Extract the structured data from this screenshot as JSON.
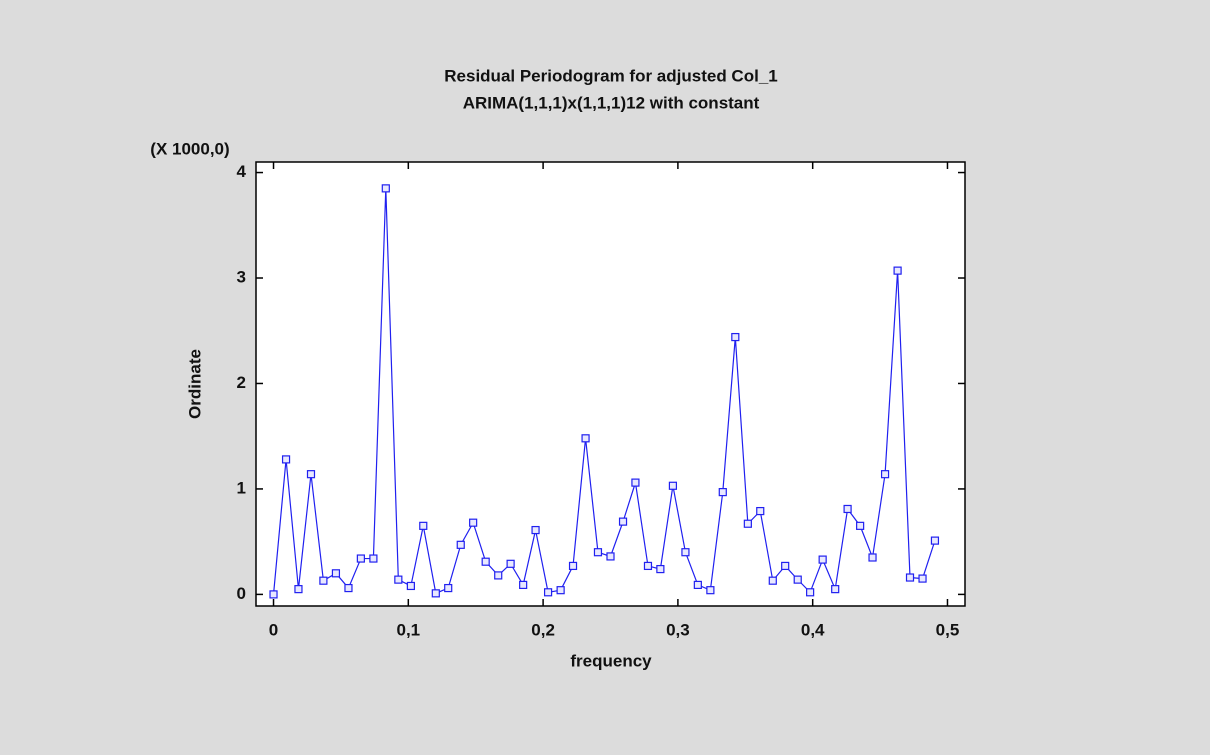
{
  "chart_data": {
    "type": "line",
    "title": "Residual Periodogram for adjusted Col_1",
    "subtitle": "ARIMA(1,1,1)x(1,1,1)12 with constant",
    "x_label": "frequency",
    "y_label": "Ordinate",
    "y_multiplier": "(X 1000,0)",
    "x": [
      0,
      0.0093,
      0.0185,
      0.0278,
      0.037,
      0.0463,
      0.0556,
      0.0648,
      0.0741,
      0.0833,
      0.0926,
      0.1019,
      0.1111,
      0.1204,
      0.1296,
      0.1389,
      0.1481,
      0.1574,
      0.1667,
      0.1759,
      0.1852,
      0.1944,
      0.2037,
      0.213,
      0.2222,
      0.2315,
      0.2407,
      0.25,
      0.2593,
      0.2685,
      0.2778,
      0.287,
      0.2963,
      0.3056,
      0.3148,
      0.3241,
      0.3333,
      0.3426,
      0.3519,
      0.3611,
      0.3704,
      0.3796,
      0.3889,
      0.3981,
      0.4074,
      0.4167,
      0.4259,
      0.4352,
      0.4444,
      0.4537,
      0.463,
      0.4722,
      0.4815,
      0.4907
    ],
    "series": [
      {
        "color": "#2020f0",
        "values": [
          0,
          1.28,
          0.05,
          1.14,
          0.13,
          0.2,
          0.06,
          0.34,
          0.34,
          3.85,
          0.14,
          0.08,
          0.65,
          0.01,
          0.06,
          0.47,
          0.68,
          0.31,
          0.18,
          0.29,
          0.09,
          0.61,
          0.02,
          0.04,
          0.27,
          1.48,
          0.4,
          0.36,
          0.69,
          1.06,
          0.27,
          0.24,
          1.03,
          0.4,
          0.09,
          0.04,
          0.97,
          2.44,
          0.67,
          0.79,
          0.13,
          0.27,
          0.14,
          0.02,
          0.33,
          0.05,
          0.81,
          0.65,
          0.35,
          1.14,
          3.07,
          0.16,
          0.15,
          0.51
        ]
      }
    ],
    "xlim": [
      -0.013,
      0.513
    ],
    "ylim": [
      -0.11,
      4.1
    ],
    "xticks": [
      0,
      {
        "value": 0.1,
        "label": "0,1"
      },
      {
        "value": 0.2,
        "label": "0,2"
      },
      {
        "value": 0.3,
        "label": "0,3"
      },
      {
        "value": 0.4,
        "label": "0,4"
      },
      {
        "value": 0.5,
        "label": "0,5"
      }
    ],
    "yticks": [
      0,
      1,
      2,
      3,
      4
    ]
  }
}
